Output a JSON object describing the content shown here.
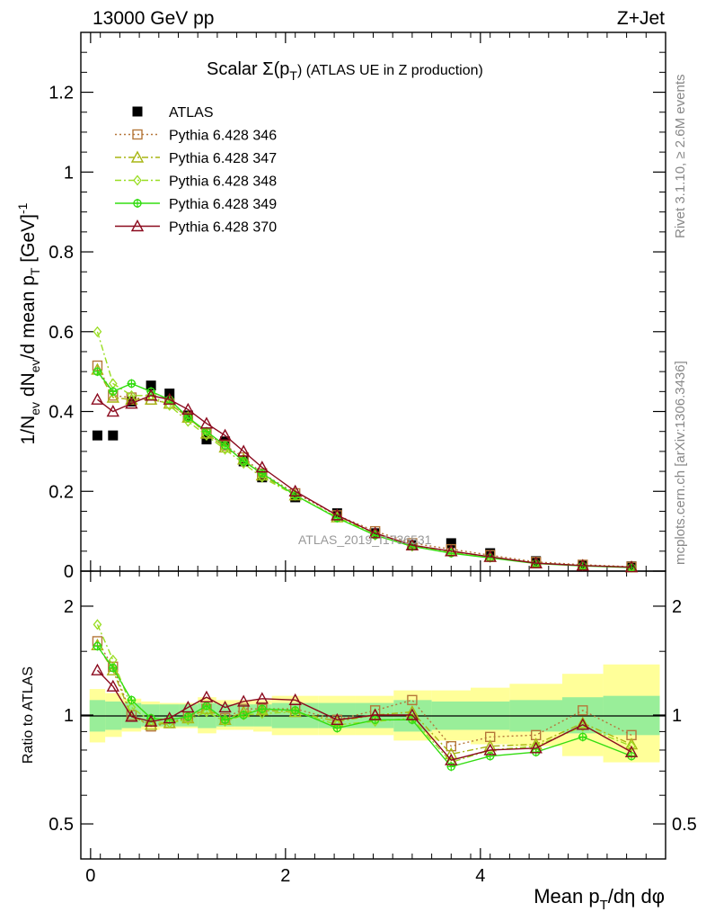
{
  "header": {
    "left": "13000 GeV pp",
    "right": "Z+Jet"
  },
  "side_labels": {
    "rivet": "Rivet 3.1.10, ≥ 2.6M events",
    "mcplots": "mcplots.cern.ch [arXiv:1306.3436]"
  },
  "watermark": "ATLAS_2019_I1736531",
  "chart_data": [
    {
      "type": "line",
      "title": "Scalar Σ(pT) (ATLAS UE in Z production)",
      "title_parts": {
        "main": "Scalar Σ(p",
        "sub": "T",
        "tail": ") (ATLAS UE in Z production)"
      },
      "xlabel": "Mean pT/dη dφ",
      "xlabel_parts": {
        "main": "Mean p",
        "sub": "T",
        "tail": "/dη dφ"
      },
      "ylabel": "1/Nev dNev/d mean pT [GeV]-1",
      "ylabel_parts": {
        "a": "1/N",
        "a_sub": "ev",
        "b": " dN",
        "b_sub": "ev",
        "c": "/d mean p",
        "c_sub": "T",
        "d": " [GeV]",
        "d_sup": "-1"
      },
      "xlim": [
        -0.1,
        5.9
      ],
      "ylim": [
        0,
        1.35
      ],
      "x_ticks": [
        0,
        2,
        4
      ],
      "y_ticks": [
        0,
        0.2,
        0.4,
        0.6,
        0.8,
        1,
        1.2
      ],
      "y_tick_labels": [
        "0",
        "0.2",
        "0.4",
        "0.6",
        "0.8",
        "1",
        "1.2"
      ],
      "legend_position": "top-left",
      "x": [
        0.07,
        0.23,
        0.42,
        0.62,
        0.81,
        1.0,
        1.19,
        1.38,
        1.57,
        1.76,
        2.1,
        2.53,
        2.92,
        3.3,
        3.7,
        4.1,
        4.57,
        5.05,
        5.55
      ],
      "series": [
        {
          "name": "ATLAS",
          "color": "#000000",
          "marker": "square-filled",
          "dash": "",
          "values": [
            0.34,
            0.34,
            0.425,
            0.465,
            0.445,
            0.39,
            0.33,
            0.325,
            0.275,
            0.235,
            0.185,
            0.145,
            0.095,
            0.065,
            0.07,
            0.045,
            0.025,
            0.015,
            0.012
          ]
        },
        {
          "name": "Pythia 6.428 346",
          "color": "#b5773a",
          "marker": "square-open",
          "dash": "2,3",
          "values": [
            0.515,
            0.44,
            0.435,
            0.43,
            0.42,
            0.385,
            0.345,
            0.315,
            0.285,
            0.245,
            0.195,
            0.14,
            0.1,
            0.07,
            0.055,
            0.04,
            0.023,
            0.016,
            0.011
          ]
        },
        {
          "name": "Pythia 6.428 347",
          "color": "#a8b614",
          "marker": "triangle-open",
          "dash": "7,3,2,3",
          "values": [
            0.505,
            0.435,
            0.43,
            0.43,
            0.42,
            0.385,
            0.345,
            0.31,
            0.28,
            0.24,
            0.19,
            0.135,
            0.095,
            0.065,
            0.05,
            0.036,
            0.02,
            0.014,
            0.01
          ]
        },
        {
          "name": "Pythia 6.428 348",
          "color": "#99dd22",
          "marker": "diamond-open",
          "dash": "7,3,2,3",
          "values": [
            0.6,
            0.47,
            0.44,
            0.44,
            0.415,
            0.375,
            0.34,
            0.305,
            0.27,
            0.235,
            0.19,
            0.135,
            0.09,
            0.062,
            0.048,
            0.035,
            0.02,
            0.014,
            0.01
          ]
        },
        {
          "name": "Pythia 6.428 349",
          "color": "#33dd11",
          "marker": "circle-cross",
          "dash": "",
          "values": [
            0.5,
            0.45,
            0.47,
            0.45,
            0.43,
            0.385,
            0.35,
            0.315,
            0.275,
            0.245,
            0.19,
            0.133,
            0.09,
            0.062,
            0.045,
            0.033,
            0.019,
            0.013,
            0.009
          ]
        },
        {
          "name": "Pythia 6.428 370",
          "color": "#8b0a1e",
          "marker": "triangle-open",
          "dash": "",
          "values": [
            0.43,
            0.4,
            0.42,
            0.44,
            0.43,
            0.405,
            0.37,
            0.34,
            0.3,
            0.26,
            0.2,
            0.14,
            0.095,
            0.065,
            0.05,
            0.036,
            0.02,
            0.014,
            0.01
          ]
        }
      ]
    },
    {
      "type": "line",
      "title": "",
      "xlabel": "Mean pT/dη dφ",
      "ylabel": "Ratio to ATLAS",
      "y_scale": "log",
      "xlim": [
        -0.1,
        5.9
      ],
      "ylim": [
        0.4,
        2.5
      ],
      "y_ticks": [
        0.5,
        1,
        2
      ],
      "y_tick_labels": [
        "0.5",
        "1",
        "2"
      ],
      "x_ticks": [
        0,
        2,
        4
      ],
      "x_tick_labels": [
        "0",
        "2",
        "4"
      ],
      "reference_line": 1,
      "band_edges": [
        -0.01,
        0.15,
        0.32,
        0.52,
        0.71,
        0.91,
        1.1,
        1.29,
        1.48,
        1.67,
        1.86,
        2.34,
        2.72,
        3.11,
        3.5,
        3.9,
        4.3,
        4.84,
        5.26,
        5.84
      ],
      "stat_band": {
        "color": "#99ee99",
        "lower": [
          0.9,
          0.91,
          0.92,
          0.93,
          0.93,
          0.93,
          0.92,
          0.93,
          0.93,
          0.93,
          0.92,
          0.92,
          0.92,
          0.9,
          0.91,
          0.91,
          0.9,
          0.89,
          0.88
        ],
        "upper": [
          1.1,
          1.09,
          1.08,
          1.07,
          1.07,
          1.07,
          1.08,
          1.07,
          1.07,
          1.07,
          1.08,
          1.08,
          1.08,
          1.1,
          1.09,
          1.09,
          1.1,
          1.12,
          1.13
        ]
      },
      "syst_band": {
        "color": "#ffff99",
        "lower": [
          0.84,
          0.87,
          0.9,
          0.91,
          0.92,
          0.92,
          0.89,
          0.91,
          0.91,
          0.9,
          0.88,
          0.88,
          0.88,
          0.85,
          0.85,
          0.83,
          0.82,
          0.77,
          0.74
        ],
        "upper": [
          1.18,
          1.15,
          1.11,
          1.09,
          1.08,
          1.08,
          1.12,
          1.1,
          1.1,
          1.1,
          1.13,
          1.13,
          1.13,
          1.17,
          1.17,
          1.19,
          1.22,
          1.3,
          1.38
        ]
      },
      "series": [
        {
          "name": "Pythia 6.428 346",
          "values": [
            1.6,
            1.36,
            1.0,
            0.93,
            0.95,
            0.99,
            1.04,
            0.98,
            1.04,
            1.04,
            1.04,
            0.97,
            1.03,
            1.1,
            0.82,
            0.87,
            0.88,
            1.03,
            0.88
          ]
        },
        {
          "name": "Pythia 6.428 347",
          "values": [
            1.56,
            1.33,
            0.99,
            0.94,
            0.95,
            0.98,
            1.04,
            0.97,
            1.02,
            1.03,
            1.02,
            0.96,
            1.0,
            1.02,
            0.78,
            0.82,
            0.83,
            0.95,
            0.83
          ]
        },
        {
          "name": "Pythia 6.428 348",
          "values": [
            1.78,
            1.42,
            1.05,
            0.96,
            0.95,
            0.97,
            1.02,
            0.96,
            1.0,
            1.01,
            1.02,
            0.94,
            0.96,
            0.98,
            0.74,
            0.8,
            0.82,
            0.93,
            0.82
          ]
        },
        {
          "name": "Pythia 6.428 349",
          "values": [
            1.55,
            1.35,
            1.1,
            0.98,
            0.97,
            0.99,
            1.06,
            0.97,
            1.0,
            1.04,
            1.03,
            0.92,
            0.97,
            0.97,
            0.72,
            0.77,
            0.79,
            0.87,
            0.77
          ]
        },
        {
          "name": "Pythia 6.428 370",
          "values": [
            1.33,
            1.2,
            0.99,
            0.96,
            0.98,
            1.05,
            1.12,
            1.05,
            1.09,
            1.11,
            1.1,
            0.97,
            1.0,
            1.0,
            0.75,
            0.8,
            0.81,
            0.94,
            0.79
          ]
        }
      ]
    }
  ]
}
